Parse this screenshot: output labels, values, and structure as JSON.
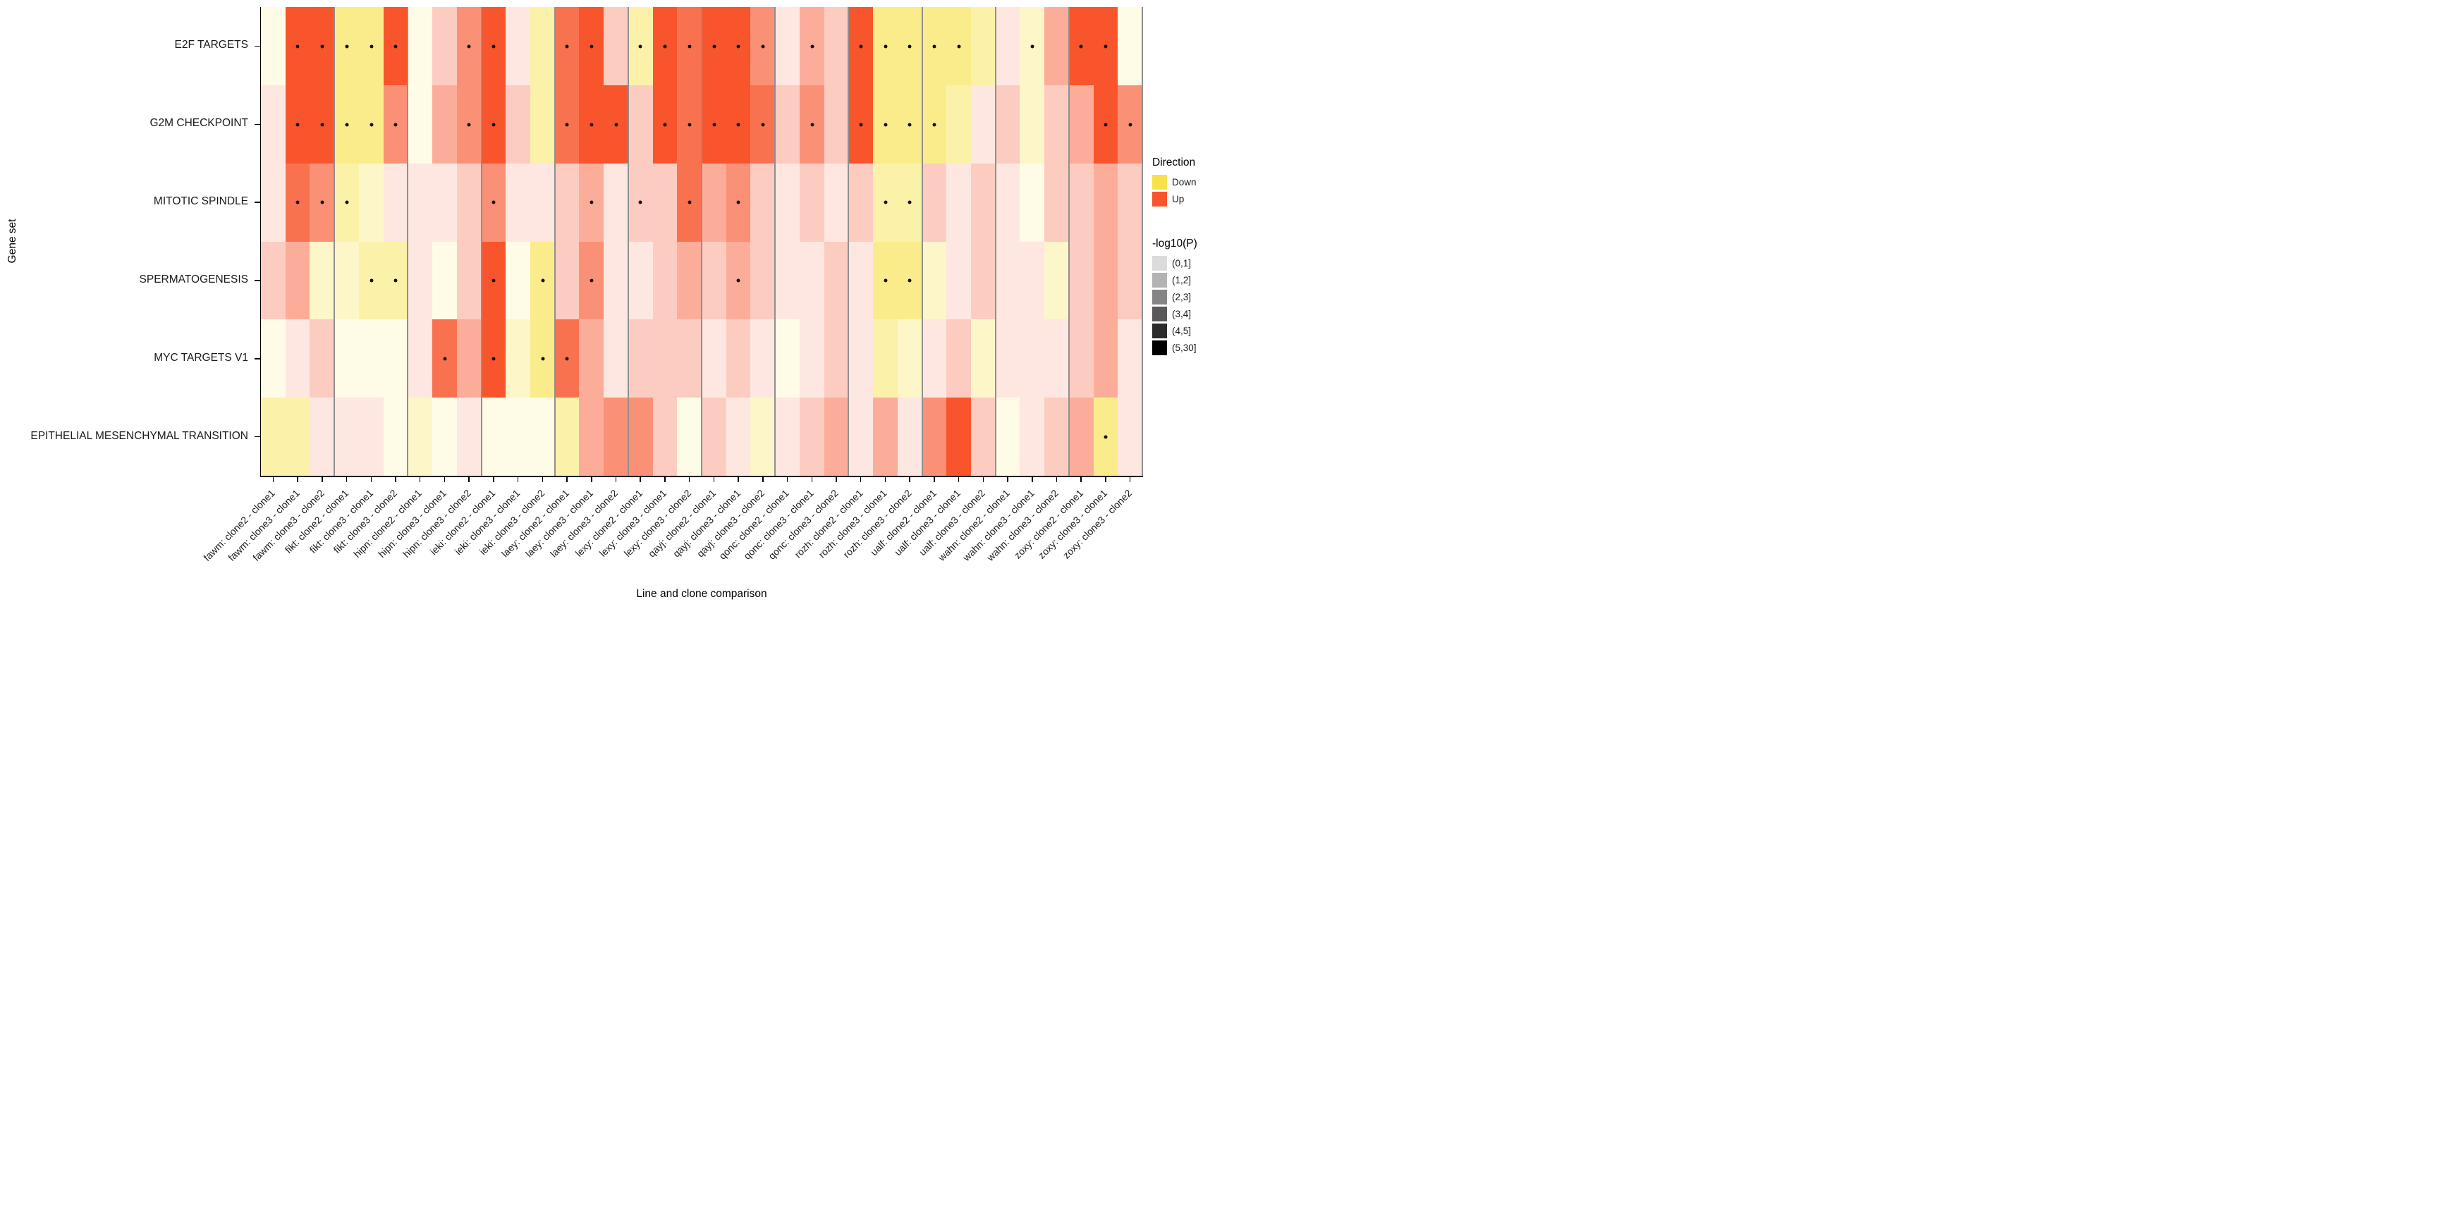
{
  "figure": {
    "x_axis_title": "Line and clone comparison",
    "y_axis_title": "Gene set"
  },
  "legend": {
    "direction": {
      "title": "Direction",
      "items": [
        {
          "label": "Down",
          "direction": "D"
        },
        {
          "label": "Up",
          "direction": "U"
        }
      ]
    },
    "pvalue": {
      "title": "-log10(P)",
      "items": [
        {
          "label": "(0,1]",
          "alpha": 0.14
        },
        {
          "label": "(1,2]",
          "alpha": 0.3
        },
        {
          "label": "(2,3]",
          "alpha": 0.48
        },
        {
          "label": "(3,4]",
          "alpha": 0.65
        },
        {
          "label": "(4,5]",
          "alpha": 0.83
        },
        {
          "label": "(5,30]",
          "alpha": 1.0
        }
      ]
    }
  },
  "chart_data": {
    "type": "heatmap",
    "title": "",
    "xlabel": "Line and clone comparison",
    "ylabel": "Gene set",
    "legend_position": "right",
    "rows": [
      "E2F TARGETS",
      "G2M CHECKPOINT",
      "MITOTIC SPINDLE",
      "SPERMATOGENESIS",
      "MYC TARGETS V1",
      "EPITHELIAL MESENCHYMAL TRANSITION"
    ],
    "columns": [
      "fawm: clone2 - clone1",
      "fawm: clone3 - clone1",
      "fawm: clone3 - clone2",
      "fikt: clone2 - clone1",
      "fikt: clone3 - clone1",
      "fikt: clone3 - clone2",
      "hipn: clone2 - clone1",
      "hipn: clone3 - clone1",
      "hipn: clone3 - clone2",
      "ieki: clone2 - clone1",
      "ieki: clone3 - clone1",
      "ieki: clone3 - clone2",
      "laey: clone2 - clone1",
      "laey: clone3 - clone1",
      "laey: clone3 - clone2",
      "lexy: clone2 - clone1",
      "lexy: clone3 - clone1",
      "lexy: clone3 - clone2",
      "qayj: clone2 - clone1",
      "qayj: clone3 - clone1",
      "qayj: clone3 - clone2",
      "qonc: clone2 - clone1",
      "qonc: clone3 - clone1",
      "qonc: clone3 - clone2",
      "rozh: clone2 - clone1",
      "rozh: clone3 - clone1",
      "rozh: clone3 - clone2",
      "ualf: clone2 - clone1",
      "ualf: clone3 - clone1",
      "ualf: clone3 - clone2",
      "wahn: clone2 - clone1",
      "wahn: clone3 - clone1",
      "wahn: clone3 - clone2",
      "zoxy: clone2 - clone1",
      "zoxy: clone3 - clone1",
      "zoxy: clone3 - clone2"
    ],
    "column_groups": [
      "fawm",
      "fikt",
      "hipn",
      "ieki",
      "laey",
      "lexy",
      "qayj",
      "qonc",
      "rozh",
      "ualf",
      "wahn",
      "zoxy"
    ],
    "group_size": 3,
    "palette": {
      "up_color": "#F8552C",
      "down_color": "#F7E24C",
      "separator_color": "#8f8f8f",
      "alpha_bins": [
        0.14,
        0.3,
        0.48,
        0.65,
        0.83,
        1.0
      ],
      "bin_labels": [
        "(0,1]",
        "(1,2]",
        "(2,3]",
        "(3,4]",
        "(4,5]",
        "(5,30]"
      ]
    },
    "cell_encoding": "direction(U=Up,D=Down) + -log10(P) bin 1-6 + optional '*' = significance dot",
    "values": [
      [
        "D1",
        "U6*",
        "U6*",
        "D4*",
        "D4*",
        "U6*",
        "D1",
        "U2",
        "U4*",
        "U6*",
        "U1",
        "D3",
        "U5*",
        "U6*",
        "U2",
        "D3*",
        "U6*",
        "U5*",
        "U6*",
        "U6*",
        "U4*",
        "U1",
        "U3*",
        "U2",
        "U6*",
        "D4*",
        "D4*",
        "D4*",
        "D4*",
        "D3",
        "U1",
        "D2*",
        "U3",
        "U6*",
        "U6*",
        "D1"
      ],
      [
        "U1",
        "U6*",
        "U6*",
        "D4*",
        "D4*",
        "U4*",
        "D1",
        "U3",
        "U4*",
        "U6*",
        "U2",
        "D3",
        "U5*",
        "U6*",
        "U6*",
        "U2",
        "U6*",
        "U5*",
        "U6*",
        "U6*",
        "U5*",
        "U2",
        "U4*",
        "U2",
        "U6*",
        "D4*",
        "D4*",
        "D4*",
        "D3",
        "U1",
        "U2",
        "D2",
        "U2",
        "U3",
        "U6*",
        "U4*"
      ],
      [
        "U1",
        "U5*",
        "U4*",
        "D3*",
        "D2",
        "U1",
        "U1",
        "U1",
        "U2",
        "U4*",
        "U1",
        "U1",
        "U2",
        "U3*",
        "U1",
        "U2*",
        "U2",
        "U5*",
        "U3",
        "U4*",
        "U2",
        "U1",
        "U2",
        "U1",
        "U2",
        "D3*",
        "D3*",
        "U2",
        "U1",
        "U2",
        "U1",
        "D1",
        "U2",
        "U2",
        "U3",
        "U2"
      ],
      [
        "U2",
        "U3",
        "D2",
        "D2",
        "D3*",
        "D3*",
        "U1",
        "D1",
        "U2",
        "U6*",
        "D1",
        "D4*",
        "U2",
        "U4*",
        "U1",
        "U1",
        "U2",
        "U3",
        "U2",
        "U3*",
        "U2",
        "U1",
        "U1",
        "U2",
        "U1",
        "D4*",
        "D4*",
        "D2",
        "U1",
        "U2",
        "U1",
        "U1",
        "D2",
        "U2",
        "U3",
        "U2"
      ],
      [
        "D1",
        "U1",
        "U2",
        "D1",
        "D1",
        "D1",
        "U1",
        "U5*",
        "U3",
        "U6*",
        "D2",
        "D4*",
        "U5*",
        "U3",
        "U1",
        "U2",
        "U2",
        "U2",
        "U1",
        "U2",
        "U1",
        "D1",
        "U1",
        "U2",
        "U1",
        "D3",
        "D2",
        "U1",
        "U2",
        "D2",
        "U1",
        "U1",
        "U1",
        "U2",
        "U3",
        "U1"
      ],
      [
        "D3",
        "D3",
        "U1",
        "U1",
        "U1",
        "D1",
        "D2",
        "D1",
        "U1",
        "D1",
        "D1",
        "D1",
        "D3",
        "U3",
        "U4",
        "U4",
        "U2",
        "D1",
        "U2",
        "U1",
        "D2",
        "U1",
        "U2",
        "U3",
        "U1",
        "U3",
        "U1",
        "U4",
        "U6",
        "U2",
        "D1",
        "U1",
        "U2",
        "U3",
        "D4*",
        "U1"
      ]
    ]
  }
}
